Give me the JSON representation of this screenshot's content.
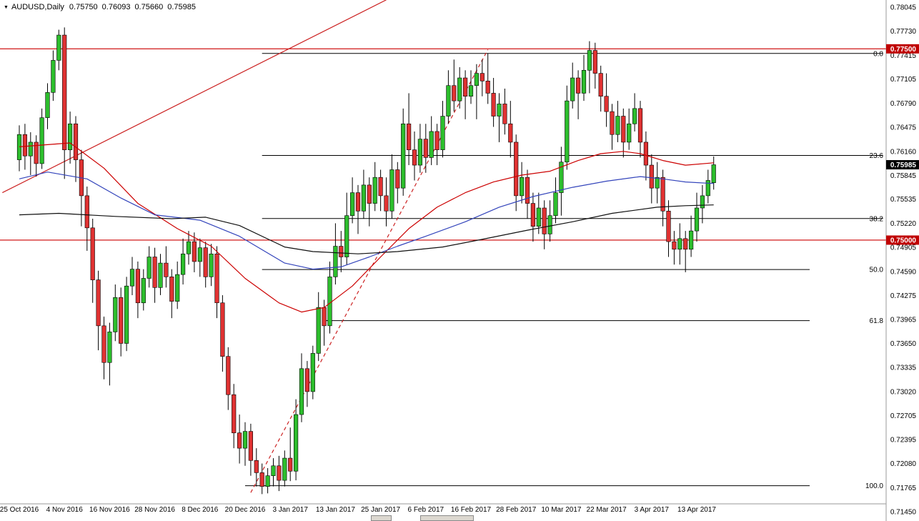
{
  "title": {
    "symbol_period": "AUDUSD,Daily",
    "open": "0.75750",
    "high": "0.76093",
    "low": "0.75660",
    "close": "0.75985"
  },
  "colors": {
    "background": "#FFFFFF",
    "candle_up": "#2DBE2D",
    "candle_down": "#E03232",
    "wick": "#000000",
    "ma_fast": "#CC0000",
    "ma_medium": "#3344BB",
    "ma_slow": "#101010",
    "trendline": "#CC2222",
    "hline": "#CC0000",
    "fib_line": "#000000",
    "axis_text": "#000000",
    "marked_red": "#C00000",
    "marked_black": "#000000"
  },
  "axis": {
    "price_top": 0.78045,
    "price_bottom": 0.7145,
    "price_labels": [
      "0.78045",
      "0.77730",
      "0.77415",
      "0.77105",
      "0.76790",
      "0.76475",
      "0.76160",
      "0.75845",
      "0.75535",
      "0.75220",
      "0.74905",
      "0.74590",
      "0.74275",
      "0.73965",
      "0.73650",
      "0.73335",
      "0.73020",
      "0.72705",
      "0.72395",
      "0.72080",
      "0.71765",
      "0.71450"
    ],
    "marked_prices": [
      {
        "value": "0.77500",
        "price": 0.775,
        "bg": "#C00000"
      },
      {
        "value": "0.75985",
        "price": 0.75985,
        "bg": "#000000"
      },
      {
        "value": "0.75000",
        "price": 0.75,
        "bg": "#C00000"
      }
    ],
    "date_labels": [
      "25 Oct 2016",
      "4 Nov 2016",
      "16 Nov 2016",
      "28 Nov 2016",
      "8 Dec 2016",
      "20 Dec 2016",
      "3 Jan 2017",
      "13 Jan 2017",
      "25 Jan 2017",
      "6 Feb 2017",
      "16 Feb 2017",
      "28 Feb 2017",
      "10 Mar 2017",
      "22 Mar 2017",
      "3 Apr 2017",
      "13 Apr 2017"
    ]
  },
  "chart_data": {
    "type": "candlestick",
    "symbol": "AUDUSD",
    "timeframe": "Daily",
    "ylim": [
      0.7145,
      0.78045
    ],
    "candle_format": [
      "open",
      "high",
      "low",
      "close"
    ],
    "candles": [
      [
        0.7605,
        0.765,
        0.759,
        0.7638
      ],
      [
        0.7638,
        0.7652,
        0.7592,
        0.761
      ],
      [
        0.761,
        0.7641,
        0.7585,
        0.7628
      ],
      [
        0.7628,
        0.7637,
        0.7583,
        0.76
      ],
      [
        0.76,
        0.7672,
        0.7593,
        0.766
      ],
      [
        0.766,
        0.7705,
        0.7645,
        0.7693
      ],
      [
        0.7693,
        0.7748,
        0.7682,
        0.7735
      ],
      [
        0.7735,
        0.7775,
        0.7722,
        0.7768
      ],
      [
        0.7768,
        0.7778,
        0.758,
        0.7618
      ],
      [
        0.7618,
        0.7668,
        0.76,
        0.7652
      ],
      [
        0.7652,
        0.7662,
        0.7576,
        0.7605
      ],
      [
        0.7605,
        0.7618,
        0.7518,
        0.7558
      ],
      [
        0.7558,
        0.757,
        0.7486,
        0.7516
      ],
      [
        0.7516,
        0.7528,
        0.7418,
        0.7448
      ],
      [
        0.7448,
        0.746,
        0.7356,
        0.7388
      ],
      [
        0.7388,
        0.74,
        0.7318,
        0.734
      ],
      [
        0.734,
        0.7392,
        0.731,
        0.738
      ],
      [
        0.738,
        0.7442,
        0.7368,
        0.7425
      ],
      [
        0.7425,
        0.7438,
        0.7348,
        0.7365
      ],
      [
        0.7365,
        0.7452,
        0.7355,
        0.744
      ],
      [
        0.744,
        0.7478,
        0.7428,
        0.7462
      ],
      [
        0.7462,
        0.7472,
        0.7398,
        0.7418
      ],
      [
        0.7418,
        0.7462,
        0.7408,
        0.745
      ],
      [
        0.745,
        0.7492,
        0.7438,
        0.7478
      ],
      [
        0.7478,
        0.749,
        0.7418,
        0.7438
      ],
      [
        0.7438,
        0.7482,
        0.7428,
        0.747
      ],
      [
        0.747,
        0.7492,
        0.7438,
        0.7452
      ],
      [
        0.7452,
        0.7462,
        0.7398,
        0.742
      ],
      [
        0.742,
        0.7472,
        0.741,
        0.7455
      ],
      [
        0.7455,
        0.7502,
        0.7442,
        0.7482
      ],
      [
        0.7482,
        0.7512,
        0.7468,
        0.7498
      ],
      [
        0.7498,
        0.751,
        0.7458,
        0.7472
      ],
      [
        0.7472,
        0.7502,
        0.7452,
        0.749
      ],
      [
        0.749,
        0.7498,
        0.7438,
        0.7452
      ],
      [
        0.7452,
        0.7495,
        0.744,
        0.7482
      ],
      [
        0.7482,
        0.7492,
        0.7398,
        0.7418
      ],
      [
        0.7418,
        0.7428,
        0.7328,
        0.7348
      ],
      [
        0.7348,
        0.736,
        0.7278,
        0.7298
      ],
      [
        0.7298,
        0.7312,
        0.7228,
        0.7248
      ],
      [
        0.7248,
        0.7272,
        0.7208,
        0.7228
      ],
      [
        0.7228,
        0.7262,
        0.7205,
        0.725
      ],
      [
        0.725,
        0.726,
        0.7192,
        0.7212
      ],
      [
        0.7212,
        0.7228,
        0.7178,
        0.7196
      ],
      [
        0.7196,
        0.7208,
        0.7168,
        0.7178
      ],
      [
        0.7178,
        0.7202,
        0.7169,
        0.7192
      ],
      [
        0.7192,
        0.7215,
        0.7178,
        0.7205
      ],
      [
        0.7205,
        0.7218,
        0.7172,
        0.7186
      ],
      [
        0.7186,
        0.7225,
        0.7178,
        0.7215
      ],
      [
        0.7215,
        0.7255,
        0.7185,
        0.7198
      ],
      [
        0.7198,
        0.7292,
        0.7186,
        0.7272
      ],
      [
        0.7272,
        0.7352,
        0.7262,
        0.7332
      ],
      [
        0.7332,
        0.7342,
        0.7282,
        0.7302
      ],
      [
        0.7302,
        0.7362,
        0.7292,
        0.7352
      ],
      [
        0.7352,
        0.7432,
        0.7342,
        0.7412
      ],
      [
        0.7412,
        0.7422,
        0.7362,
        0.7388
      ],
      [
        0.7388,
        0.7472,
        0.7378,
        0.7452
      ],
      [
        0.7452,
        0.7522,
        0.7442,
        0.7492
      ],
      [
        0.7492,
        0.7512,
        0.7458,
        0.7478
      ],
      [
        0.7478,
        0.7562,
        0.7468,
        0.7532
      ],
      [
        0.7532,
        0.7582,
        0.7522,
        0.7562
      ],
      [
        0.7562,
        0.7572,
        0.7508,
        0.7538
      ],
      [
        0.7538,
        0.7592,
        0.7528,
        0.7572
      ],
      [
        0.7572,
        0.7582,
        0.7518,
        0.7548
      ],
      [
        0.7548,
        0.7602,
        0.7538,
        0.7582
      ],
      [
        0.7582,
        0.7592,
        0.7538,
        0.7558
      ],
      [
        0.7558,
        0.7582,
        0.7518,
        0.7538
      ],
      [
        0.7538,
        0.7612,
        0.7528,
        0.7592
      ],
      [
        0.7592,
        0.7602,
        0.7548,
        0.7568
      ],
      [
        0.7568,
        0.7672,
        0.7558,
        0.7652
      ],
      [
        0.7652,
        0.7692,
        0.7598,
        0.7618
      ],
      [
        0.7618,
        0.7642,
        0.7578,
        0.7598
      ],
      [
        0.7598,
        0.7652,
        0.7588,
        0.7632
      ],
      [
        0.7632,
        0.7652,
        0.7588,
        0.7608
      ],
      [
        0.7608,
        0.7662,
        0.7598,
        0.7642
      ],
      [
        0.7642,
        0.7652,
        0.7598,
        0.7618
      ],
      [
        0.7618,
        0.7682,
        0.7608,
        0.7662
      ],
      [
        0.7662,
        0.7722,
        0.7652,
        0.7702
      ],
      [
        0.7702,
        0.7736,
        0.7668,
        0.7682
      ],
      [
        0.7682,
        0.7726,
        0.7672,
        0.7712
      ],
      [
        0.7712,
        0.7722,
        0.7658,
        0.7688
      ],
      [
        0.7688,
        0.7722,
        0.7678,
        0.7702
      ],
      [
        0.7702,
        0.773,
        0.7658,
        0.7718
      ],
      [
        0.7718,
        0.7736,
        0.7688,
        0.7708
      ],
      [
        0.7708,
        0.7744,
        0.7678,
        0.7692
      ],
      [
        0.7692,
        0.7712,
        0.7648,
        0.7662
      ],
      [
        0.7662,
        0.7692,
        0.7628,
        0.7678
      ],
      [
        0.7678,
        0.7698,
        0.7638,
        0.7652
      ],
      [
        0.7652,
        0.7682,
        0.7608,
        0.7628
      ],
      [
        0.7628,
        0.7638,
        0.7538,
        0.7558
      ],
      [
        0.7558,
        0.7602,
        0.7548,
        0.7582
      ],
      [
        0.7582,
        0.7592,
        0.7528,
        0.7548
      ],
      [
        0.7548,
        0.7562,
        0.7498,
        0.7518
      ],
      [
        0.7518,
        0.7562,
        0.7508,
        0.7542
      ],
      [
        0.7542,
        0.7552,
        0.7488,
        0.7508
      ],
      [
        0.7508,
        0.7552,
        0.7498,
        0.7532
      ],
      [
        0.7532,
        0.7582,
        0.7522,
        0.7562
      ],
      [
        0.7562,
        0.7622,
        0.7532,
        0.7602
      ],
      [
        0.7602,
        0.7702,
        0.7592,
        0.7682
      ],
      [
        0.7682,
        0.7732,
        0.7672,
        0.7712
      ],
      [
        0.7712,
        0.7722,
        0.7658,
        0.7692
      ],
      [
        0.7692,
        0.7742,
        0.7682,
        0.7722
      ],
      [
        0.7722,
        0.776,
        0.7692,
        0.7748
      ],
      [
        0.7748,
        0.7758,
        0.7698,
        0.7718
      ],
      [
        0.7718,
        0.7728,
        0.7668,
        0.7688
      ],
      [
        0.7688,
        0.7718,
        0.7648,
        0.7668
      ],
      [
        0.7668,
        0.7678,
        0.7618,
        0.7638
      ],
      [
        0.7638,
        0.7682,
        0.7628,
        0.7662
      ],
      [
        0.7662,
        0.7672,
        0.7608,
        0.7628
      ],
      [
        0.7628,
        0.7672,
        0.7618,
        0.7652
      ],
      [
        0.7652,
        0.7692,
        0.7642,
        0.7672
      ],
      [
        0.7672,
        0.7682,
        0.7608,
        0.7628
      ],
      [
        0.7628,
        0.7642,
        0.7578,
        0.7598
      ],
      [
        0.7598,
        0.7612,
        0.7548,
        0.7568
      ],
      [
        0.7568,
        0.7602,
        0.7548,
        0.7582
      ],
      [
        0.7582,
        0.7592,
        0.7518,
        0.7538
      ],
      [
        0.7538,
        0.7552,
        0.7478,
        0.7498
      ],
      [
        0.7498,
        0.7512,
        0.7468,
        0.7488
      ],
      [
        0.7488,
        0.7522,
        0.7468,
        0.7502
      ],
      [
        0.7502,
        0.7512,
        0.7458,
        0.7488
      ],
      [
        0.7488,
        0.7532,
        0.7478,
        0.7512
      ],
      [
        0.7512,
        0.7562,
        0.7498,
        0.7542
      ],
      [
        0.7542,
        0.7572,
        0.7522,
        0.7558
      ],
      [
        0.7558,
        0.7592,
        0.7548,
        0.7578
      ],
      [
        0.7575,
        0.76093,
        0.7566,
        0.75985
      ]
    ],
    "tick_indices": [
      0,
      8,
      16,
      24,
      32,
      40,
      48,
      56,
      64,
      72,
      80,
      88,
      96,
      104,
      112,
      120
    ],
    "hlines": [
      {
        "price": 0.775,
        "color": "#CC0000"
      },
      {
        "price": 0.75,
        "color": "#CC0000"
      }
    ],
    "fibonacci": [
      {
        "label": "0.0",
        "price": 0.7744,
        "from_i": 43,
        "to_i": 153
      },
      {
        "label": "23.6",
        "price": 0.76107,
        "from_i": 43,
        "to_i": 153
      },
      {
        "label": "38.2",
        "price": 0.75282,
        "from_i": 43,
        "to_i": 153
      },
      {
        "label": "50.0",
        "price": 0.74615,
        "from_i": 43,
        "to_i": 140
      },
      {
        "label": "61.8",
        "price": 0.73948,
        "from_i": 54,
        "to_i": 140
      },
      {
        "label": "100.0",
        "price": 0.7179,
        "from_i": 40,
        "to_i": 140
      }
    ],
    "trendlines": [
      {
        "name": "ascending-trendline",
        "style": "solid",
        "from": {
          "i": -3,
          "p": 0.7562
        },
        "to": {
          "i": 65,
          "p": 0.7814
        }
      },
      {
        "name": "impulse-trendline",
        "style": "dashed",
        "from": {
          "i": 41,
          "p": 0.717
        },
        "to": {
          "i": 83,
          "p": 0.7749
        }
      }
    ],
    "moving_averages": [
      {
        "name": "ma-fast",
        "color": "#CC0000",
        "points": [
          [
            0,
            0.7622
          ],
          [
            9,
            0.7627
          ],
          [
            15,
            0.7594
          ],
          [
            21,
            0.7548
          ],
          [
            28,
            0.7515
          ],
          [
            34,
            0.7492
          ],
          [
            40,
            0.745
          ],
          [
            46,
            0.7418
          ],
          [
            50,
            0.7406
          ],
          [
            54,
            0.7412
          ],
          [
            59,
            0.744
          ],
          [
            64,
            0.7478
          ],
          [
            69,
            0.7515
          ],
          [
            74,
            0.7543
          ],
          [
            79,
            0.7562
          ],
          [
            84,
            0.7576
          ],
          [
            89,
            0.7585
          ],
          [
            94,
            0.759
          ],
          [
            99,
            0.7604
          ],
          [
            103,
            0.7613
          ],
          [
            107,
            0.7616
          ],
          [
            110,
            0.7613
          ],
          [
            114,
            0.7604
          ],
          [
            118,
            0.7598
          ],
          [
            123,
            0.7601
          ]
        ]
      },
      {
        "name": "ma-medium",
        "color": "#3344BB",
        "points": [
          [
            0,
            0.758
          ],
          [
            5,
            0.7589
          ],
          [
            12,
            0.758
          ],
          [
            18,
            0.7555
          ],
          [
            24,
            0.7533
          ],
          [
            32,
            0.7526
          ],
          [
            39,
            0.7505
          ],
          [
            47,
            0.747
          ],
          [
            52,
            0.7462
          ],
          [
            57,
            0.7465
          ],
          [
            62,
            0.7478
          ],
          [
            67,
            0.7492
          ],
          [
            72,
            0.7505
          ],
          [
            79,
            0.7524
          ],
          [
            85,
            0.7543
          ],
          [
            91,
            0.7557
          ],
          [
            98,
            0.7569
          ],
          [
            104,
            0.7577
          ],
          [
            110,
            0.7583
          ],
          [
            114,
            0.758
          ],
          [
            118,
            0.7576
          ],
          [
            123,
            0.7574
          ]
        ]
      },
      {
        "name": "ma-slow",
        "color": "#101010",
        "points": [
          [
            0,
            0.7533
          ],
          [
            7,
            0.7535
          ],
          [
            17,
            0.7531
          ],
          [
            27,
            0.7528
          ],
          [
            33,
            0.753
          ],
          [
            39,
            0.7519
          ],
          [
            47,
            0.7491
          ],
          [
            52,
            0.7485
          ],
          [
            60,
            0.7482
          ],
          [
            67,
            0.7485
          ],
          [
            75,
            0.7491
          ],
          [
            82,
            0.7501
          ],
          [
            90,
            0.7513
          ],
          [
            98,
            0.7524
          ],
          [
            105,
            0.7535
          ],
          [
            113,
            0.7543
          ],
          [
            118,
            0.7545
          ],
          [
            123,
            0.7546
          ]
        ]
      }
    ]
  }
}
